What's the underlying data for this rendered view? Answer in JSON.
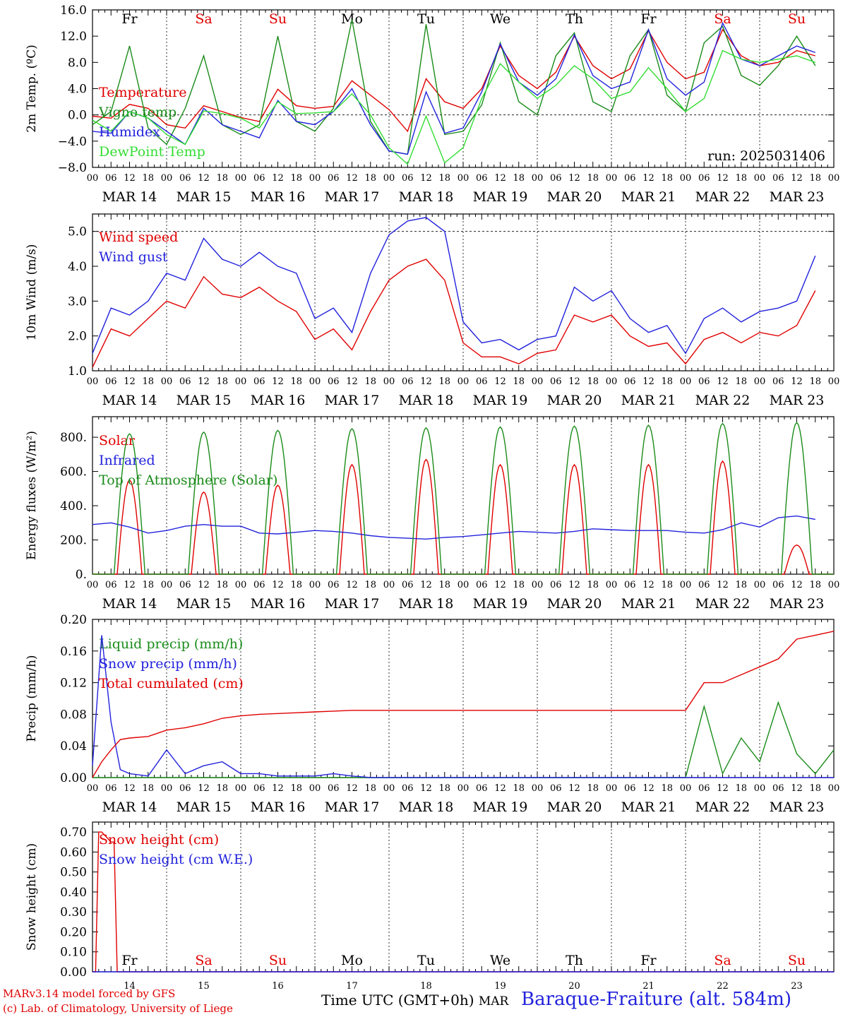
{
  "days": [
    "MAR 14",
    "MAR 15",
    "MAR 16",
    "MAR 17",
    "MAR 18",
    "MAR 19",
    "MAR 20",
    "MAR 21",
    "MAR 22",
    "MAR 23"
  ],
  "day_numbers": [
    "14",
    "15",
    "16",
    "17",
    "18",
    "19",
    "20",
    "21",
    "22",
    "23"
  ],
  "weekdays": [
    {
      "label": "Fr",
      "color": "#000000"
    },
    {
      "label": "Sa",
      "color": "#e00000"
    },
    {
      "label": "Su",
      "color": "#e00000"
    },
    {
      "label": "Mo",
      "color": "#000000"
    },
    {
      "label": "Tu",
      "color": "#000000"
    },
    {
      "label": "We",
      "color": "#000000"
    },
    {
      "label": "Th",
      "color": "#000000"
    },
    {
      "label": "Fr",
      "color": "#000000"
    },
    {
      "label": "Sa",
      "color": "#e00000"
    },
    {
      "label": "Su",
      "color": "#e00000"
    }
  ],
  "hour_ticks": [
    "00",
    "06",
    "12",
    "18"
  ],
  "footer": {
    "model": "MARv3.14 model forced by GFS",
    "credit": "(c) Lab. of Climatology, University of Liege",
    "xlabel": "Time UTC (GMT+0h)",
    "month": "MAR",
    "station": "Baraque-Fraiture (alt. 584m)"
  },
  "chart_data": [
    {
      "type": "line",
      "ylabel": "2m Temp. (ºC)",
      "ylim": [
        -8,
        16
      ],
      "yticks": [
        "16.0",
        "12.0",
        "8.0",
        "4.0",
        "0.0",
        "−4.0",
        "−8.0"
      ],
      "ytick_values": [
        16,
        12,
        8,
        4,
        0,
        -4,
        -8
      ],
      "reference_line": 0,
      "run_label": "run: 2025031406",
      "weekday_labels": "top",
      "x_hours": [
        0,
        6,
        12,
        18,
        24,
        30,
        36,
        42,
        48,
        54,
        60,
        66,
        72,
        78,
        84,
        90,
        96,
        102,
        108,
        114,
        120,
        126,
        132,
        138,
        144,
        150,
        156,
        162,
        168,
        174,
        180,
        186,
        192,
        198,
        204,
        210,
        216,
        222,
        228,
        234
      ],
      "series": [
        {
          "name": "Temperature",
          "color": "#e00000",
          "values": [
            -0.2,
            -0.5,
            1.6,
            1.0,
            -1.5,
            -2.0,
            1.4,
            0.5,
            -0.4,
            -1.0,
            3.9,
            1.4,
            1.0,
            1.3,
            5.2,
            3.0,
            0.8,
            -2.5,
            5.5,
            2.0,
            1.0,
            4.0,
            10.5,
            6.0,
            4.0,
            6.5,
            12.0,
            7.5,
            5.5,
            7.0,
            12.8,
            8.0,
            5.5,
            6.5,
            13.0,
            9.0,
            7.5,
            8.0,
            9.8,
            9.0
          ]
        },
        {
          "name": "Vigne temp",
          "color": "#1a8c1a",
          "values": [
            -1.5,
            0.5,
            10.5,
            -2.0,
            -4.5,
            1.0,
            9.0,
            -1.5,
            -3.0,
            -1.5,
            12.0,
            -1.0,
            -2.5,
            1.0,
            14.5,
            -1.0,
            -5.5,
            -6.0,
            13.8,
            -3.0,
            -2.5,
            1.5,
            11.0,
            2.0,
            0.0,
            9.0,
            12.5,
            2.0,
            0.5,
            9.0,
            13.0,
            3.0,
            0.5,
            11.0,
            13.5,
            6.0,
            4.5,
            7.5,
            12.0,
            7.5
          ]
        },
        {
          "name": "Humidex",
          "color": "#2222dd",
          "values": [
            -2.5,
            -2.8,
            0.5,
            -0.5,
            -2.5,
            -4.5,
            1.0,
            -1.5,
            -2.5,
            -3.5,
            2.2,
            -1.0,
            -1.5,
            0.5,
            4.0,
            -1.5,
            -5.5,
            -6.0,
            3.5,
            -2.8,
            -2.0,
            3.5,
            10.8,
            5.0,
            3.0,
            5.5,
            12.2,
            6.0,
            4.0,
            5.0,
            13.0,
            5.5,
            3.0,
            5.0,
            14.0,
            8.5,
            7.5,
            9.0,
            10.5,
            9.5
          ]
        },
        {
          "name": "DewPoint Temp",
          "color": "#33dd33",
          "values": [
            -0.8,
            -2.5,
            0.5,
            -0.5,
            -3.0,
            -4.5,
            0.6,
            0.2,
            -0.5,
            -2.0,
            2.0,
            0.2,
            0.3,
            0.5,
            3.2,
            0.0,
            -5.0,
            -7.5,
            -0.2,
            -7.3,
            -5.0,
            2.5,
            7.8,
            5.0,
            2.5,
            4.5,
            7.5,
            5.5,
            2.5,
            3.5,
            7.2,
            4.0,
            0.5,
            2.5,
            9.8,
            8.5,
            8.0,
            8.5,
            9.0,
            8.0
          ]
        }
      ]
    },
    {
      "type": "line",
      "ylabel": "10m Wind (m/s)",
      "ylim": [
        1,
        5.5
      ],
      "yticks": [
        "5.0",
        "4.0",
        "3.0",
        "2.0",
        "1.0"
      ],
      "ytick_values": [
        5,
        4,
        3,
        2,
        1
      ],
      "reference_line": 5,
      "x_hours": [
        0,
        6,
        12,
        18,
        24,
        30,
        36,
        42,
        48,
        54,
        60,
        66,
        72,
        78,
        84,
        90,
        96,
        102,
        108,
        114,
        120,
        126,
        132,
        138,
        144,
        150,
        156,
        162,
        168,
        174,
        180,
        186,
        192,
        198,
        204,
        210,
        216,
        222,
        228,
        234
      ],
      "series": [
        {
          "name": "Wind speed",
          "color": "#e00000",
          "values": [
            1.1,
            2.2,
            2.0,
            2.5,
            3.0,
            2.8,
            3.7,
            3.2,
            3.1,
            3.4,
            3.0,
            2.7,
            1.9,
            2.2,
            1.6,
            2.7,
            3.6,
            4.0,
            4.2,
            3.6,
            1.8,
            1.4,
            1.4,
            1.2,
            1.5,
            1.6,
            2.6,
            2.4,
            2.6,
            2.0,
            1.7,
            1.8,
            1.2,
            1.9,
            2.1,
            1.8,
            2.1,
            2.0,
            2.3,
            3.3
          ]
        },
        {
          "name": "Wind gust",
          "color": "#2222dd",
          "values": [
            1.5,
            2.8,
            2.6,
            3.0,
            3.8,
            3.6,
            4.8,
            4.2,
            4.0,
            4.4,
            4.0,
            3.8,
            2.5,
            2.8,
            2.1,
            3.8,
            4.9,
            5.3,
            5.4,
            5.0,
            2.4,
            1.8,
            1.9,
            1.6,
            1.9,
            2.0,
            3.4,
            3.0,
            3.3,
            2.5,
            2.1,
            2.3,
            1.5,
            2.5,
            2.8,
            2.4,
            2.7,
            2.8,
            3.0,
            4.3
          ]
        }
      ]
    },
    {
      "type": "line",
      "ylabel": "Energy fluxes (W/m²)",
      "ylim": [
        0,
        920
      ],
      "yticks": [
        "800.",
        "600.",
        "400.",
        "200.",
        "0."
      ],
      "ytick_values": [
        800,
        600,
        400,
        200,
        0
      ],
      "daily_peaks": {
        "Top of Atmosphere (Solar)": [
          820,
          830,
          840,
          850,
          855,
          860,
          865,
          870,
          880,
          885
        ],
        "Solar": [
          550,
          480,
          520,
          640,
          670,
          640,
          640,
          640,
          660,
          170
        ]
      },
      "x_hours": [
        0,
        6,
        12,
        18,
        24,
        30,
        36,
        42,
        48,
        54,
        60,
        66,
        72,
        78,
        84,
        90,
        96,
        102,
        108,
        114,
        120,
        126,
        132,
        138,
        144,
        150,
        156,
        162,
        168,
        174,
        180,
        186,
        192,
        198,
        204,
        210,
        216,
        222,
        228,
        234
      ],
      "series": [
        {
          "name": "Solar",
          "color": "#e00000"
        },
        {
          "name": "Infrared",
          "color": "#2222dd",
          "values": [
            290,
            300,
            275,
            240,
            255,
            280,
            290,
            280,
            280,
            240,
            235,
            245,
            255,
            250,
            240,
            225,
            215,
            210,
            205,
            215,
            220,
            230,
            240,
            250,
            245,
            240,
            250,
            265,
            260,
            255,
            255,
            255,
            245,
            240,
            260,
            300,
            275,
            330,
            340,
            320
          ]
        },
        {
          "name": "Top of Atmosphere (Solar)",
          "color": "#1a8c1a"
        }
      ]
    },
    {
      "type": "line",
      "ylabel": "Precip (mm/h)",
      "ylim": [
        0,
        0.2
      ],
      "yticks": [
        "0.20",
        "0.16",
        "0.12",
        "0.08",
        "0.04",
        "0.00"
      ],
      "ytick_values": [
        0.2,
        0.16,
        0.12,
        0.08,
        0.04,
        0
      ],
      "x_hours": [
        0,
        3,
        6,
        9,
        12,
        18,
        24,
        30,
        36,
        42,
        48,
        54,
        60,
        66,
        72,
        78,
        84,
        90,
        96,
        120,
        144,
        168,
        192,
        198,
        204,
        210,
        216,
        222,
        228,
        234,
        240
      ],
      "series": [
        {
          "name": "Liquid precip (mm/h)",
          "color": "#1a8c1a",
          "values": [
            0,
            0,
            0,
            0,
            0,
            0,
            0,
            0,
            0,
            0,
            0,
            0,
            0,
            0,
            0,
            0,
            0,
            0,
            0,
            0,
            0,
            0,
            0,
            0.09,
            0.005,
            0.05,
            0.02,
            0.095,
            0.03,
            0.005,
            0.035
          ]
        },
        {
          "name": "Snow precip (mm/h)",
          "color": "#2222dd",
          "values": [
            0.015,
            0.18,
            0.07,
            0.01,
            0.005,
            0.002,
            0.035,
            0.005,
            0.015,
            0.02,
            0.005,
            0.005,
            0.002,
            0.002,
            0.002,
            0.005,
            0.002,
            0,
            0,
            0,
            0,
            0,
            0,
            0,
            0,
            0,
            0,
            0,
            0,
            0,
            0
          ]
        },
        {
          "name": "Total cumulated (cm)",
          "color": "#e00000",
          "values": [
            0,
            0.02,
            0.035,
            0.048,
            0.05,
            0.052,
            0.06,
            0.063,
            0.068,
            0.075,
            0.078,
            0.08,
            0.081,
            0.082,
            0.083,
            0.084,
            0.085,
            0.085,
            0.085,
            0.085,
            0.085,
            0.085,
            0.085,
            0.12,
            0.12,
            0.13,
            0.14,
            0.15,
            0.175,
            0.18,
            0.185
          ]
        }
      ]
    },
    {
      "type": "line",
      "ylabel": "Snow height (cm)",
      "ylim": [
        0,
        0.75
      ],
      "yticks": [
        "0.70",
        "0.60",
        "0.50",
        "0.40",
        "0.30",
        "0.20",
        "0.10",
        "0.00"
      ],
      "ytick_values": [
        0.7,
        0.6,
        0.5,
        0.4,
        0.3,
        0.2,
        0.1,
        0
      ],
      "weekday_labels": "bottom",
      "x_hours": [
        0,
        1,
        2,
        3,
        6,
        7,
        8,
        24,
        240
      ],
      "series": [
        {
          "name": "Snow height (cm)",
          "color": "#e00000",
          "values": [
            0,
            0,
            0.7,
            0.7,
            0.65,
            0.65,
            0,
            0,
            0
          ]
        },
        {
          "name": "Snow height (cm W.E.)",
          "color": "#2222dd",
          "values": [
            0,
            0,
            0,
            0,
            0,
            0,
            0,
            0,
            0
          ]
        }
      ]
    }
  ]
}
